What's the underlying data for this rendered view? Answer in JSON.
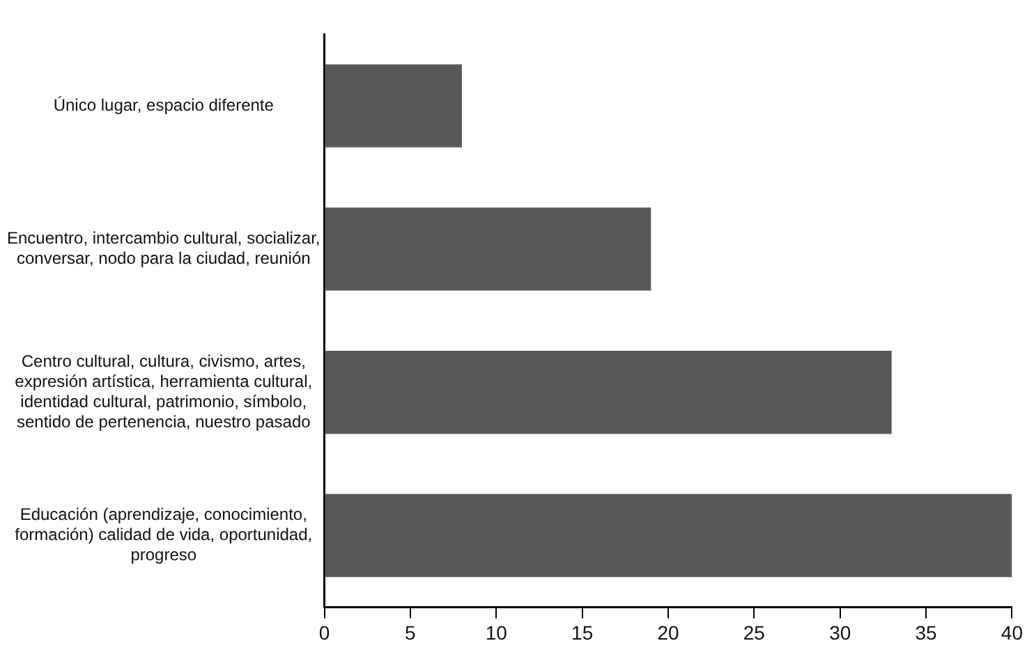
{
  "chart_data": {
    "type": "bar",
    "orientation": "horizontal",
    "categories": [
      "Único lugar, espacio diferente",
      "Encuentro, intercambio cultural, socializar, conversar, nodo para la ciudad, reunión",
      "Centro cultural, cultura, civismo, artes, expresión artística, herramienta cultural, identidad cultural, patrimonio, símbolo, sentido de pertenencia, nuestro pasado",
      "Educación (aprendizaje, conocimiento, formación) calidad de vida, oportunidad, progreso"
    ],
    "values": [
      8,
      19,
      33,
      40
    ],
    "color": "#595957",
    "xlim": [
      0,
      40
    ],
    "xticks": [
      0,
      5,
      10,
      15,
      20,
      25,
      30,
      35,
      40
    ],
    "grid": false,
    "legend": false
  }
}
